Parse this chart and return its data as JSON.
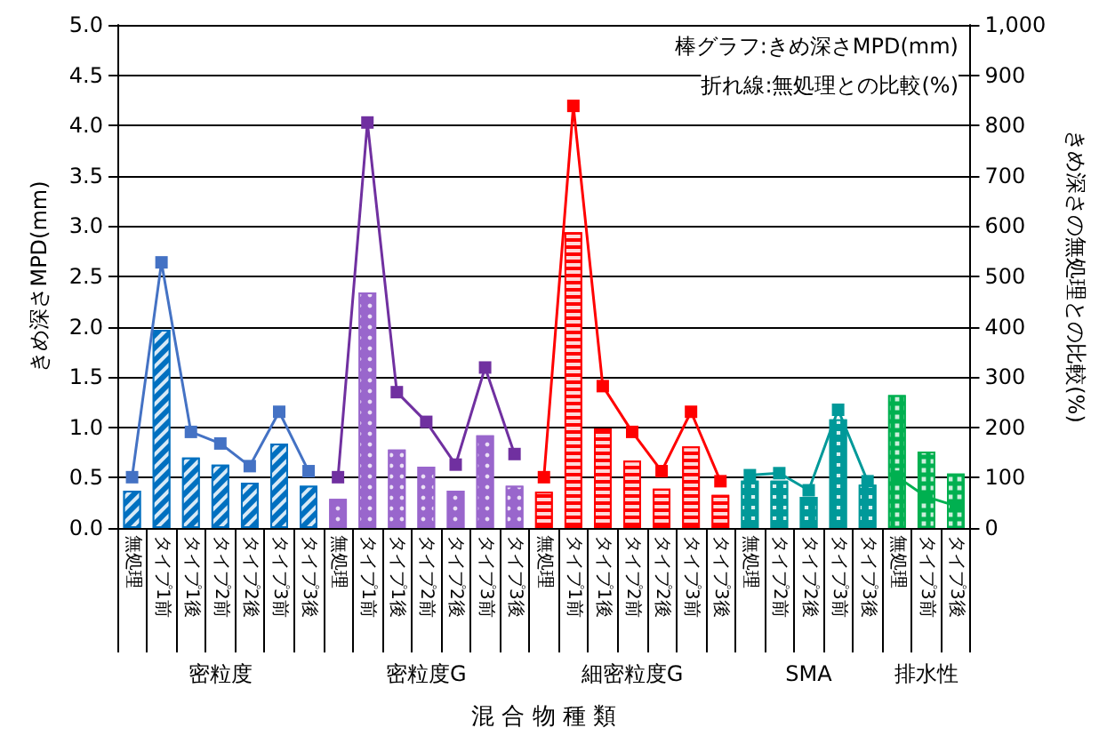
{
  "chart_data": {
    "type": "bar",
    "categories": [
      "無処理",
      "タイプ1前",
      "タイプ1後",
      "タイプ2前",
      "タイプ2後",
      "タイプ3前",
      "タイプ3後",
      "無処理",
      "タイプ1前",
      "タイプ1後",
      "タイプ2前",
      "タイプ2後",
      "タイプ3前",
      "タイプ3後",
      "無処理",
      "タイプ1前",
      "タイプ1後",
      "タイプ2前",
      "タイプ2後",
      "タイプ3前",
      "タイプ3後",
      "無処理",
      "タイプ2前",
      "タイプ2後",
      "タイプ3前",
      "タイプ3後",
      "無処理",
      "タイプ3前",
      "タイプ3後"
    ],
    "xlabel": "混 合 物 種 類",
    "ylabel": "きめ深さMPD(mm)",
    "y2label": "きめ深さの無処理との比較(%)",
    "annotations": [
      "棒グラフ:きめ深さMPD(mm)",
      "折れ線:無処理との比較(%)"
    ],
    "series": [
      {
        "name": "密粒度",
        "color": "#0070c0",
        "values": [
          0.37,
          1.97,
          0.7,
          0.63,
          0.45,
          0.84,
          0.42,
          null,
          null,
          null,
          null,
          null,
          null,
          null,
          null,
          null,
          null,
          null,
          null,
          null,
          null,
          null,
          null,
          null,
          null,
          null,
          null,
          null,
          null
        ]
      },
      {
        "name": "密粒度G",
        "color": "#9966cc",
        "values": [
          null,
          null,
          null,
          null,
          null,
          null,
          null,
          0.29,
          2.34,
          0.78,
          0.61,
          0.37,
          0.92,
          0.42,
          null,
          null,
          null,
          null,
          null,
          null,
          null,
          null,
          null,
          null,
          null,
          null,
          null,
          null,
          null
        ]
      },
      {
        "name": "細密粒度G",
        "color": "#ff0000",
        "values": [
          null,
          null,
          null,
          null,
          null,
          null,
          null,
          null,
          null,
          null,
          null,
          null,
          null,
          null,
          0.36,
          2.94,
          0.99,
          0.67,
          0.39,
          0.81,
          0.33,
          null,
          null,
          null,
          null,
          null,
          null,
          null,
          null
        ]
      },
      {
        "name": "SMA",
        "color": "#009999",
        "values": [
          null,
          null,
          null,
          null,
          null,
          null,
          null,
          null,
          null,
          null,
          null,
          null,
          null,
          null,
          null,
          null,
          null,
          null,
          null,
          null,
          null,
          0.47,
          0.47,
          0.31,
          1.08,
          0.43,
          null,
          null,
          null
        ]
      },
      {
        "name": "排水性",
        "color": "#00b050",
        "values": [
          null,
          null,
          null,
          null,
          null,
          null,
          null,
          null,
          null,
          null,
          null,
          null,
          null,
          null,
          null,
          null,
          null,
          null,
          null,
          null,
          null,
          null,
          null,
          null,
          null,
          null,
          1.32,
          0.76,
          0.54
        ]
      },
      {
        "type": "line",
        "axis": "y2",
        "color": "#4472c4",
        "values": [
          101,
          528,
          191,
          168,
          123,
          231,
          113,
          null,
          null,
          null,
          null,
          null,
          null,
          null,
          null,
          null,
          null,
          null,
          null,
          null,
          null,
          null,
          null,
          null,
          null,
          null,
          null,
          null,
          null
        ]
      },
      {
        "type": "line",
        "axis": "y2",
        "color": "#7030a0",
        "values": [
          null,
          null,
          null,
          null,
          null,
          null,
          null,
          101,
          806,
          270,
          211,
          126,
          319,
          147,
          null,
          null,
          null,
          null,
          null,
          null,
          null,
          null,
          null,
          null,
          null,
          null,
          null,
          null,
          null
        ]
      },
      {
        "type": "line",
        "axis": "y2",
        "color": "#ff0000",
        "values": [
          null,
          null,
          null,
          null,
          null,
          null,
          null,
          null,
          null,
          null,
          null,
          null,
          null,
          null,
          101,
          839,
          282,
          191,
          113,
          231,
          93,
          null,
          null,
          null,
          null,
          null,
          null,
          null,
          null
        ]
      },
      {
        "type": "line",
        "axis": "y2",
        "color": "#009999",
        "values": [
          null,
          null,
          null,
          null,
          null,
          null,
          null,
          null,
          null,
          null,
          null,
          null,
          null,
          null,
          null,
          null,
          null,
          null,
          null,
          null,
          null,
          105,
          109,
          75,
          235,
          93,
          null,
          null,
          null
        ]
      },
      {
        "type": "line",
        "axis": "y2",
        "color": "#00b050",
        "values": [
          null,
          null,
          null,
          null,
          null,
          null,
          null,
          null,
          null,
          null,
          null,
          null,
          null,
          null,
          null,
          null,
          null,
          null,
          null,
          null,
          null,
          null,
          null,
          null,
          null,
          null,
          102,
          62,
          44
        ]
      }
    ],
    "ylim": [
      0,
      5
    ],
    "yticks": [
      {
        "value": 0,
        "label": "0.0"
      },
      {
        "value": 0.5,
        "label": "0.5"
      },
      {
        "value": 1,
        "label": "1.0"
      },
      {
        "value": 1.5,
        "label": "1.5"
      },
      {
        "value": 2,
        "label": "2.0"
      },
      {
        "value": 2.5,
        "label": "2.5"
      },
      {
        "value": 3,
        "label": "3.0"
      },
      {
        "value": 3.5,
        "label": "3.5"
      },
      {
        "value": 4,
        "label": "4.0"
      },
      {
        "value": 4.5,
        "label": "4.5"
      },
      {
        "value": 5,
        "label": "5.0"
      }
    ],
    "y2lim": [
      0,
      1000
    ],
    "y2ticks": [
      0,
      100,
      200,
      300,
      400,
      500,
      600,
      700,
      800,
      900,
      {
        "value": 1000,
        "label": "1,000"
      }
    ],
    "grid": "y",
    "marker": "square",
    "legend": false
  }
}
